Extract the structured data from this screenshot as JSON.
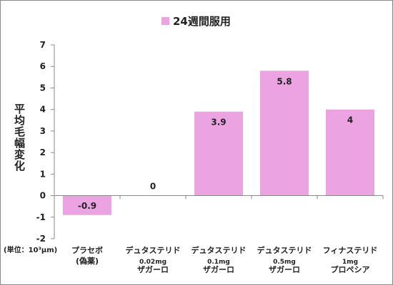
{
  "chart_data": {
    "type": "bar",
    "legend": {
      "label": "24週間服用",
      "position": "top"
    },
    "ylabel": "平均毛幅変化",
    "unit_note": "(単位：10³μm)",
    "ylim": [
      -2,
      7
    ],
    "yticks": [
      -2,
      -1,
      0,
      1,
      2,
      3,
      4,
      5,
      6,
      7
    ],
    "grid": false,
    "categories": [
      {
        "lines": [
          "プラセボ",
          "(偽薬)"
        ]
      },
      {
        "lines": [
          "デュタステリド",
          "0.02mg",
          "ザガーロ"
        ]
      },
      {
        "lines": [
          "デュタステリド",
          "0.1mg",
          "ザガーロ"
        ]
      },
      {
        "lines": [
          "デュタステリド",
          "0.5mg",
          "ザガーロ"
        ]
      },
      {
        "lines": [
          "フィナステリド",
          "1mg",
          "プロペシア"
        ]
      }
    ],
    "values": [
      -0.9,
      0,
      3.9,
      5.8,
      4
    ],
    "value_labels": [
      "-0.9",
      "0",
      "3.9",
      "5.8",
      "4"
    ],
    "bar_color": "#eba3e2"
  }
}
